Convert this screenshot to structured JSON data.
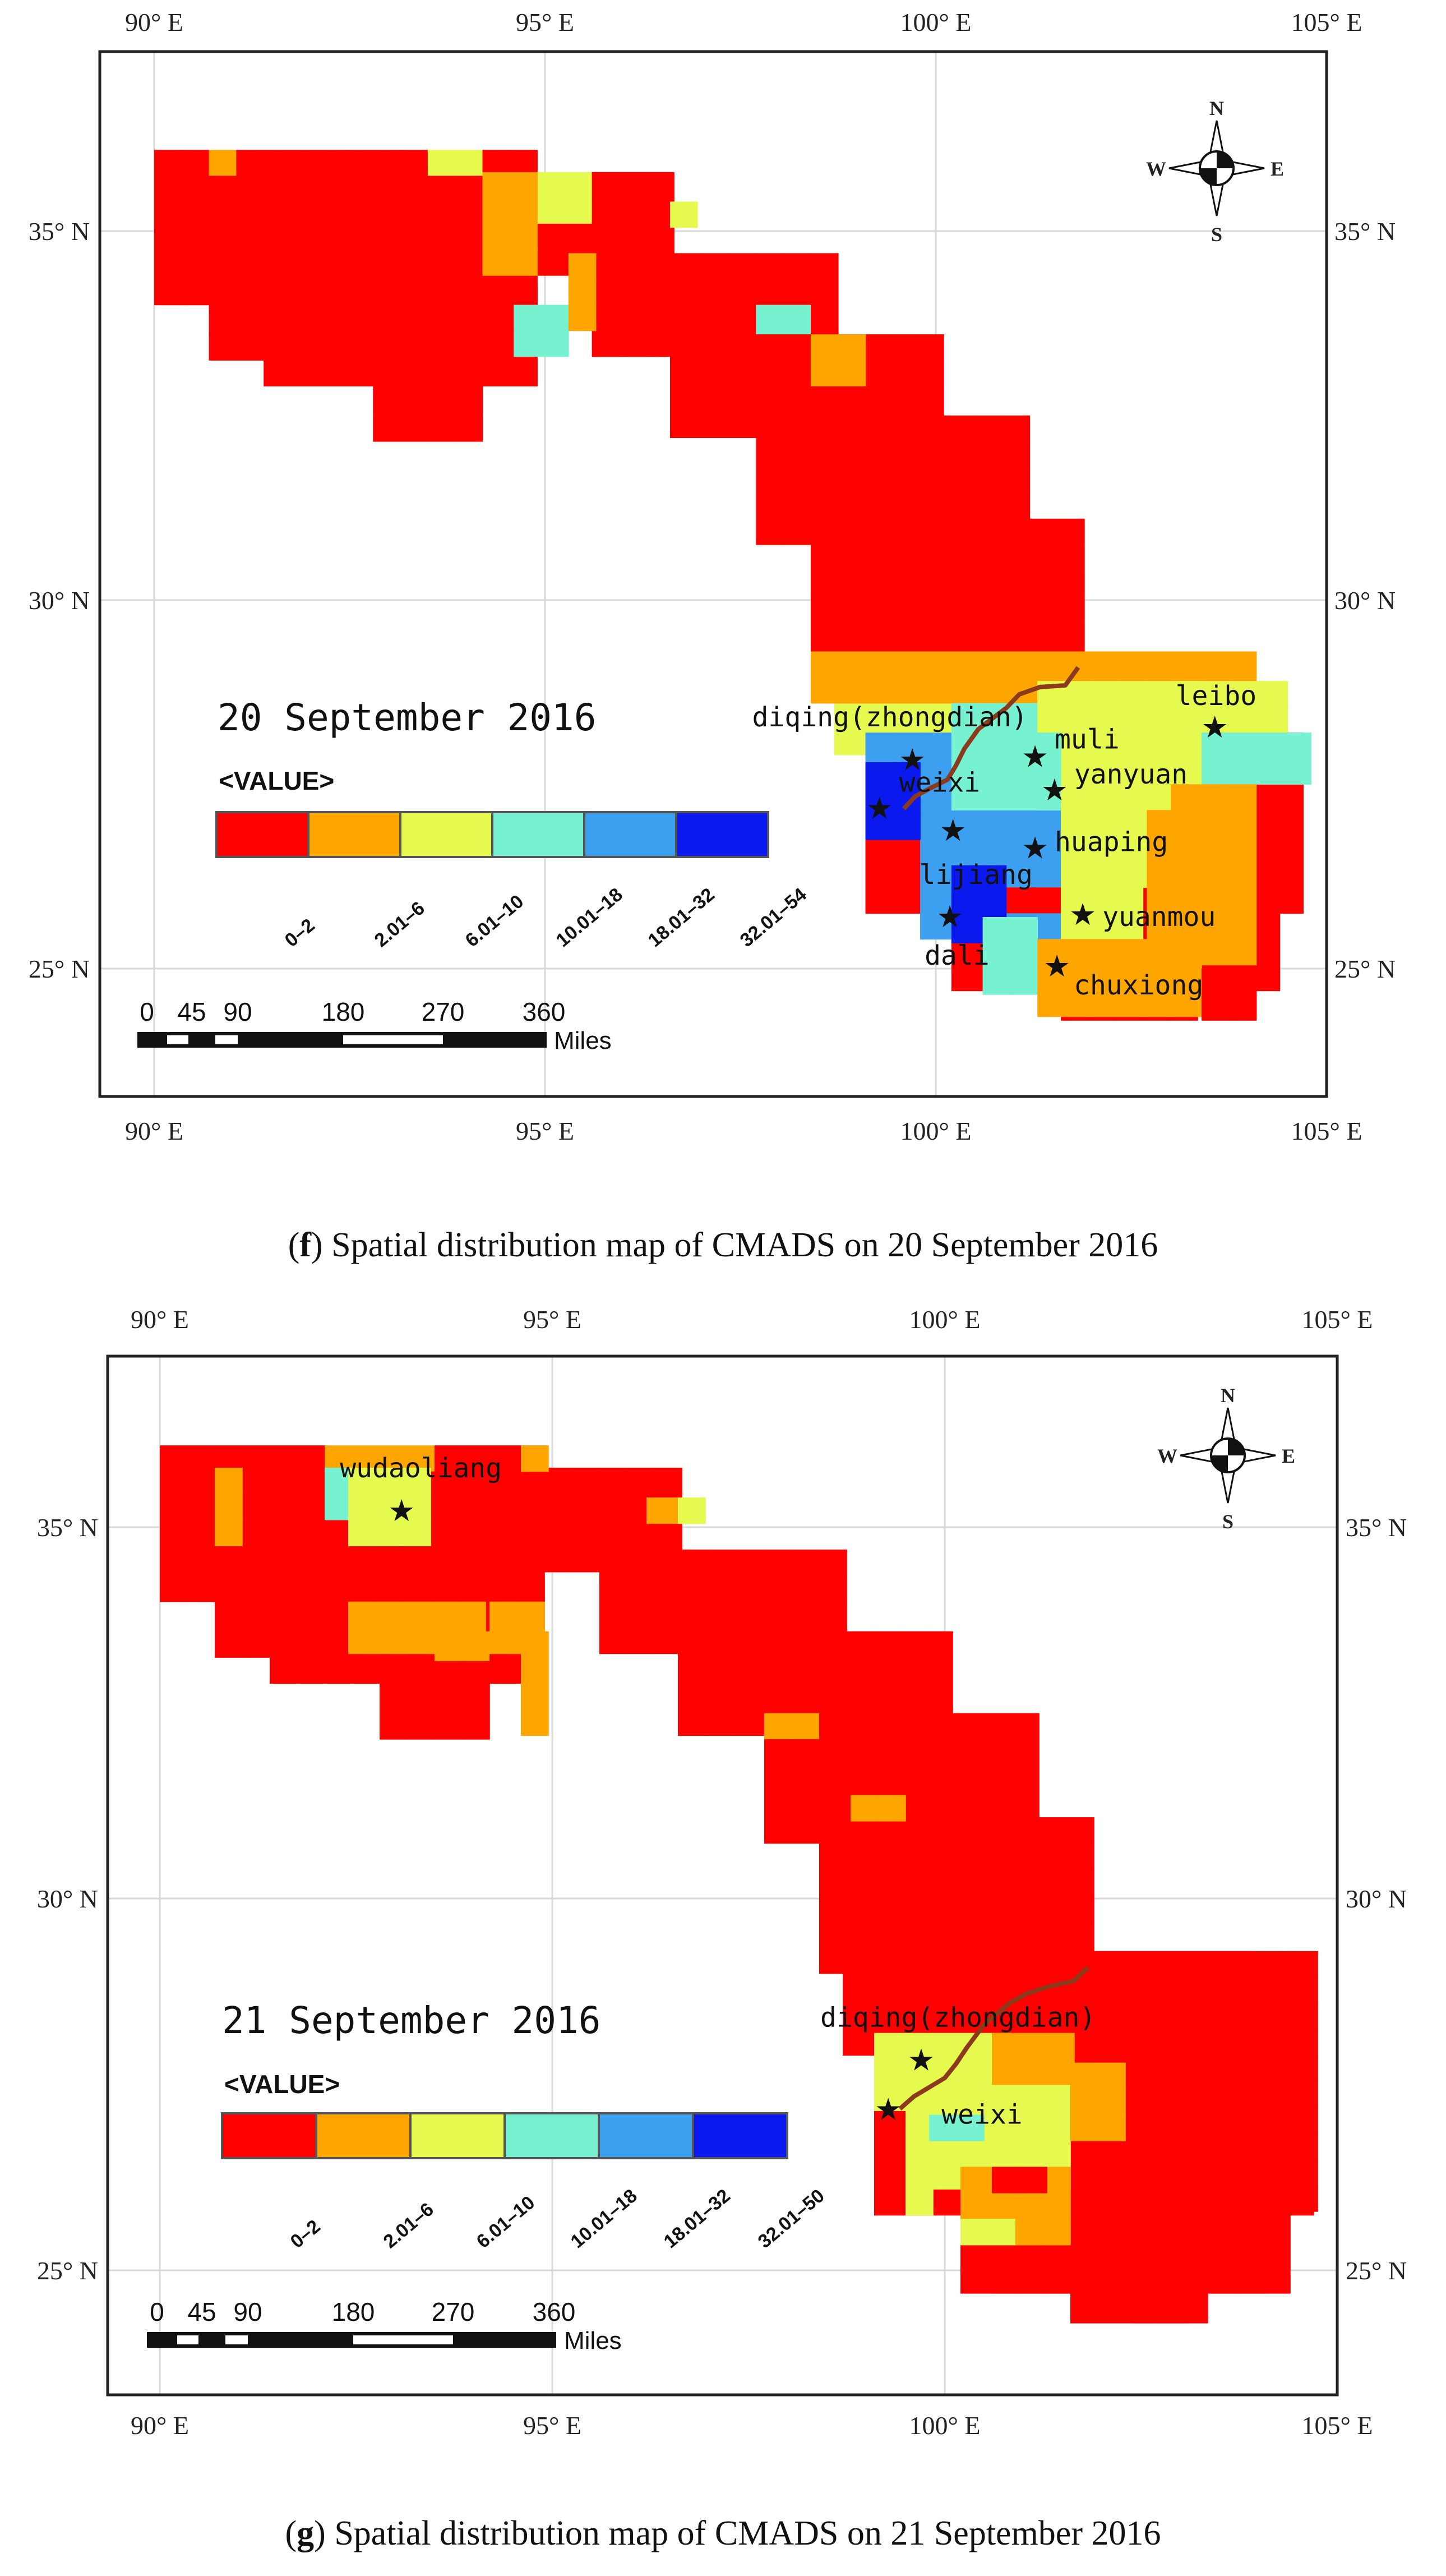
{
  "palette": {
    "class_1": "#ff0000",
    "class_2": "#ffa500",
    "class_3": "#e6f94f",
    "class_4": "#77f2d0",
    "class_5": "#3c9ff0",
    "class_6": "#0a1aee",
    "frame": "#222222",
    "grid": "#d8d8d8",
    "river": "#8b3a1c"
  },
  "compass": {
    "north": "N",
    "south": "S",
    "east": "E",
    "west": "W"
  },
  "scale_bar": {
    "ticks": [
      "0",
      "45",
      "90",
      "180",
      "270",
      "360"
    ],
    "unit": "Miles"
  },
  "panels": [
    {
      "id": "f",
      "map_date": "20 September 2016",
      "legend_title": "<VALUE>",
      "legend_classes": [
        "0–2",
        "2.01–6",
        "6.01–10",
        "10.01–18",
        "18.01–32",
        "32.01–54"
      ],
      "axis": {
        "top": [
          "90° E",
          "95° E",
          "100° E",
          "105° E"
        ],
        "bottom": [
          "90° E",
          "95° E",
          "100° E",
          "105° E"
        ],
        "left": [
          "35° N",
          "30° N",
          "25° N"
        ],
        "right": [
          "35° N",
          "30° N",
          "25° N"
        ]
      },
      "stations": [
        {
          "name": "diqing(zhongdian)",
          "lon": 99.7,
          "lat": 27.83
        },
        {
          "name": "muli",
          "lon": 101.27,
          "lat": 27.87
        },
        {
          "name": "leibo",
          "lon": 103.57,
          "lat": 28.27
        },
        {
          "name": "yanyuan",
          "lon": 101.52,
          "lat": 27.42
        },
        {
          "name": "weixi",
          "lon": 99.28,
          "lat": 27.17
        },
        {
          "name": "lijiang",
          "lon": 100.22,
          "lat": 26.87
        },
        {
          "name": "huaping",
          "lon": 101.27,
          "lat": 26.63
        },
        {
          "name": "yuanmou",
          "lon": 101.88,
          "lat": 25.73
        },
        {
          "name": "dali",
          "lon": 100.18,
          "lat": 25.7
        },
        {
          "name": "chuxiong",
          "lon": 101.55,
          "lat": 25.03
        }
      ],
      "caption_label": "(f)",
      "caption_label_letter": "f",
      "caption_text": "Spatial distribution map of CMADS on 20 September 2016"
    },
    {
      "id": "g",
      "map_date": "21 September 2016",
      "legend_title": "<VALUE>",
      "legend_classes": [
        "0–2",
        "2.01–6",
        "6.01–10",
        "10.01–18",
        "18.01–32",
        "32.01–50"
      ],
      "axis": {
        "top": [
          "90° E",
          "95° E",
          "100° E",
          "105° E"
        ],
        "bottom": [
          "90° E",
          "95° E",
          "100° E",
          "105° E"
        ],
        "left": [
          "35° N",
          "30° N",
          "25° N"
        ],
        "right": [
          "35° N",
          "30° N",
          "25° N"
        ]
      },
      "stations": [
        {
          "name": "wudaoliang",
          "lon": 93.08,
          "lat": 35.22
        },
        {
          "name": "diqing(zhongdian)",
          "lon": 99.7,
          "lat": 27.83
        },
        {
          "name": "weixi",
          "lon": 99.28,
          "lat": 27.17
        }
      ],
      "caption_label": "(g)",
      "caption_label_letter": "g",
      "caption_text": "Spatial distribution map of CMADS on 21 September 2016"
    }
  ]
}
